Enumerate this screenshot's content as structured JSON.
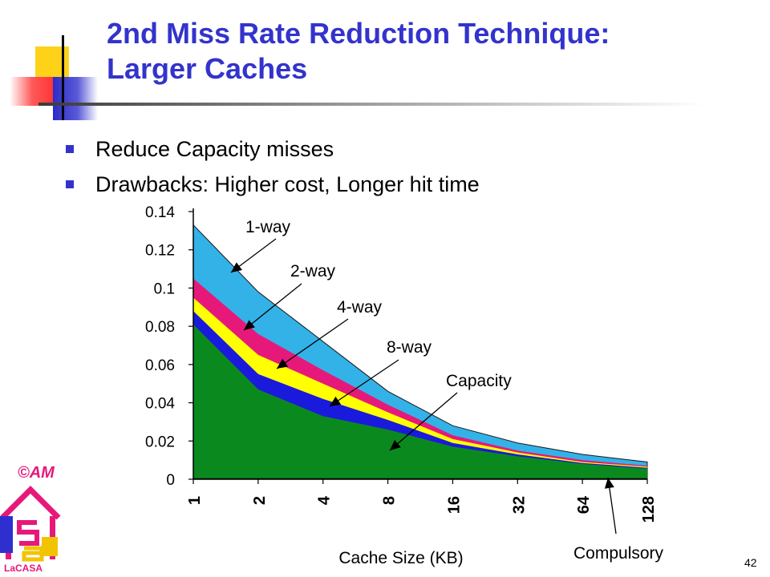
{
  "slide": {
    "title_line1": "2nd  Miss Rate Reduction Technique:",
    "title_line2": "Larger Caches",
    "bullets": [
      "Reduce Capacity misses",
      "Drawbacks: Higher cost, Longer hit time"
    ],
    "copyright": "©AM",
    "logo_text": "LaCASA",
    "page_number": "42"
  },
  "colors": {
    "title": "#3333cc",
    "bullet": "#3333cc",
    "one_way": "#33b2e8",
    "two_way": "#e6197a",
    "four_way": "#ffff00",
    "eight_way": "#1a1adc",
    "capacity": "#0a8a1e",
    "compulsory": "#000000"
  },
  "chart_data": {
    "type": "area",
    "categories": [
      "1",
      "2",
      "4",
      "8",
      "16",
      "32",
      "64",
      "128"
    ],
    "xlabel": "Cache Size (KB)",
    "ylabel": "",
    "ylim": [
      0,
      0.14
    ],
    "yticks": [
      "0",
      "0.02",
      "0.04",
      "0.06",
      "0.08",
      "0.1",
      "0.12",
      "0.14"
    ],
    "series": [
      {
        "name": "1-way",
        "values": [
          0.133,
          0.098,
          0.072,
          0.046,
          0.028,
          0.019,
          0.013,
          0.009
        ]
      },
      {
        "name": "2-way",
        "values": [
          0.105,
          0.076,
          0.057,
          0.039,
          0.023,
          0.015,
          0.01,
          0.007
        ]
      },
      {
        "name": "4-way",
        "values": [
          0.095,
          0.065,
          0.05,
          0.035,
          0.021,
          0.014,
          0.009,
          0.0065
        ]
      },
      {
        "name": "8-way",
        "values": [
          0.088,
          0.055,
          0.042,
          0.031,
          0.019,
          0.013,
          0.0085,
          0.006
        ]
      },
      {
        "name": "Capacity",
        "values": [
          0.081,
          0.047,
          0.033,
          0.026,
          0.017,
          0.012,
          0.008,
          0.0055
        ]
      },
      {
        "name": "Compulsory",
        "values": [
          0.0005,
          0.0005,
          0.0005,
          0.0005,
          0.0005,
          0.0005,
          0.0005,
          0.0005
        ]
      }
    ]
  }
}
